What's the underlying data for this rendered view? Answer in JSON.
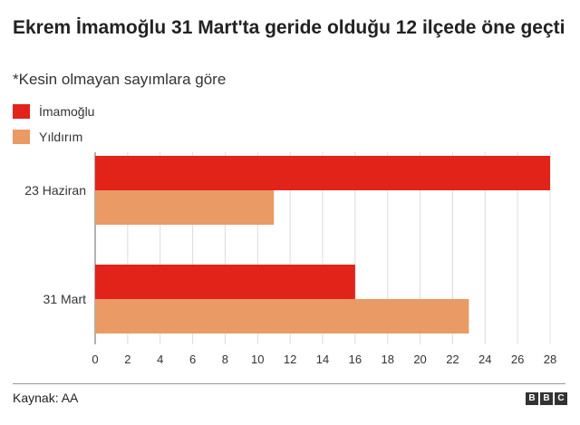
{
  "title": "Ekrem İmamoğlu 31 Mart'ta geride olduğu 12 ilçede öne geçti",
  "subtitle": "*Kesin olmayan sayımlara göre",
  "source": "Kaynak: AA",
  "logo": {
    "letters": [
      "B",
      "B",
      "C"
    ]
  },
  "chart_data": {
    "type": "bar",
    "orientation": "horizontal",
    "categories": [
      "23 Haziran",
      "31 Mart"
    ],
    "series": [
      {
        "name": "İmamoğlu",
        "values": [
          28,
          16
        ],
        "color": "#e2231a"
      },
      {
        "name": "Yıldırım",
        "values": [
          11,
          23
        ],
        "color": "#ea9a64"
      }
    ],
    "xlim": [
      0,
      28
    ],
    "xticks": [
      "0",
      "2",
      "4",
      "6",
      "8",
      "10",
      "12",
      "14",
      "16",
      "18",
      "20",
      "22",
      "24",
      "26",
      "28"
    ],
    "grid": true,
    "legend_position": "top-left"
  }
}
